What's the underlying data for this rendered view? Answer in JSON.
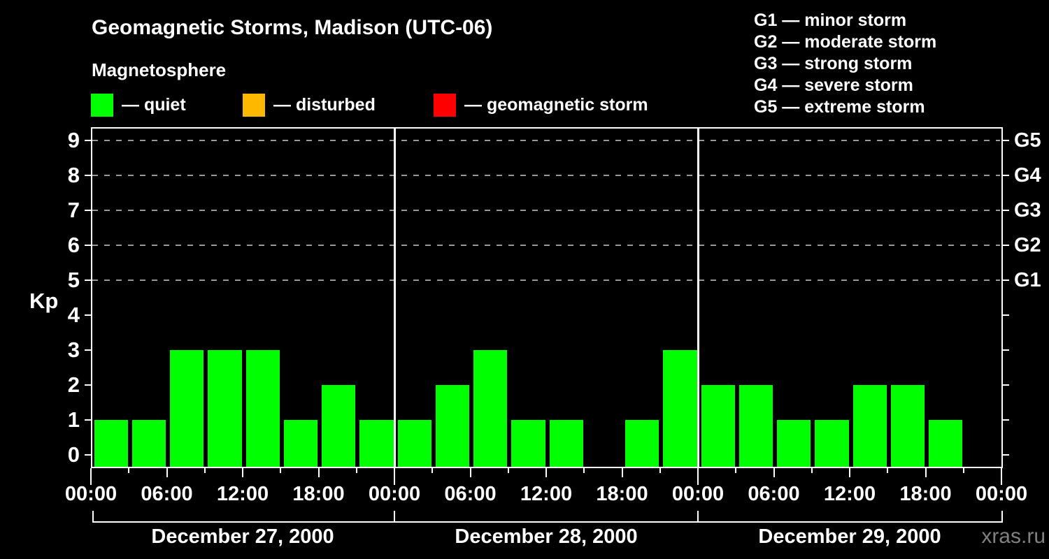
{
  "header": {
    "title": "Geomagnetic Storms, Madison (UTC-06)"
  },
  "legend": {
    "title": "Magnetosphere",
    "items": [
      {
        "key": "quiet",
        "label": "— quiet",
        "color": "#00ff00"
      },
      {
        "key": "disturbed",
        "label": "— disturbed",
        "color": "#ffb800"
      },
      {
        "key": "geomagnetic-storm",
        "label": "— geomagnetic storm",
        "color": "#ff0000"
      }
    ]
  },
  "g_scale_legend": {
    "lines": [
      "G1 — minor storm",
      "G2 — moderate storm",
      "G3 — strong storm",
      "G4 — severe storm",
      "G5 — extreme storm"
    ]
  },
  "watermark": "xras.ru",
  "chart_data": {
    "type": "bar",
    "title": "Geomagnetic Storms, Madison (UTC-06)",
    "subtitle": "Magnetosphere",
    "xlabel": "",
    "ylabel": "Kp",
    "ylim": [
      0,
      9
    ],
    "yticks": [
      0,
      1,
      2,
      3,
      4,
      5,
      6,
      7,
      8,
      9
    ],
    "grid_levels": [
      5,
      6,
      7,
      8,
      9
    ],
    "grid_style": "dashed",
    "bar_color": "#00ff00",
    "bars_per_day": 8,
    "hours_per_bar": 3,
    "x_tick_labels": [
      "00:00",
      "06:00",
      "12:00",
      "18:00",
      "00:00",
      "06:00",
      "12:00",
      "18:00",
      "00:00",
      "06:00",
      "12:00",
      "18:00",
      "00:00"
    ],
    "right_axis_labels": [
      {
        "kp": 5,
        "label": "G1"
      },
      {
        "kp": 6,
        "label": "G2"
      },
      {
        "kp": 7,
        "label": "G3"
      },
      {
        "kp": 8,
        "label": "G4"
      },
      {
        "kp": 9,
        "label": "G5"
      }
    ],
    "days": [
      {
        "date": "December 27, 2000",
        "kp": [
          1,
          1,
          3,
          3,
          3,
          1,
          2,
          1
        ]
      },
      {
        "date": "December 28, 2000",
        "kp": [
          1,
          2,
          3,
          1,
          1,
          null,
          1,
          3
        ]
      },
      {
        "date": "December 29, 2000",
        "kp": [
          2,
          2,
          1,
          1,
          2,
          2,
          1,
          null
        ]
      }
    ]
  }
}
